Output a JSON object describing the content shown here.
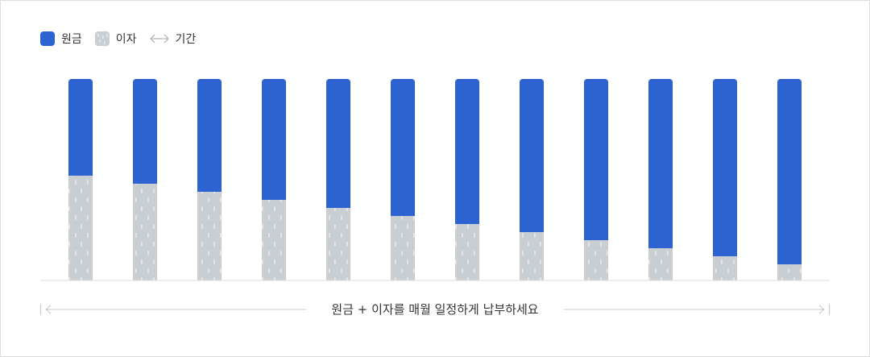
{
  "legend": {
    "principal": "원금",
    "interest": "이자",
    "period": "기간"
  },
  "caption": "원금 + 이자를 매월 일정하게 납부하세요",
  "colors": {
    "principal": "#2d63d1",
    "interest": "#c9ced3",
    "interest_pattern": "#e6e9ec",
    "axis": "#dddddd",
    "arrow": "#c8c8c8"
  },
  "chart_data": {
    "type": "bar",
    "stacked": true,
    "categories": [
      "",
      "",
      "",
      "",
      "",
      "",
      "",
      "",
      "",
      "",
      "",
      ""
    ],
    "series": [
      {
        "name": "이자",
        "values": [
          52,
          48,
          44,
          40,
          36,
          32,
          28,
          24,
          20,
          16,
          12,
          8
        ]
      },
      {
        "name": "원금",
        "values": [
          48,
          52,
          56,
          60,
          64,
          68,
          72,
          76,
          80,
          84,
          88,
          92
        ]
      }
    ],
    "ylim": [
      0,
      100
    ],
    "grid": false,
    "legend_position": "top-left"
  }
}
